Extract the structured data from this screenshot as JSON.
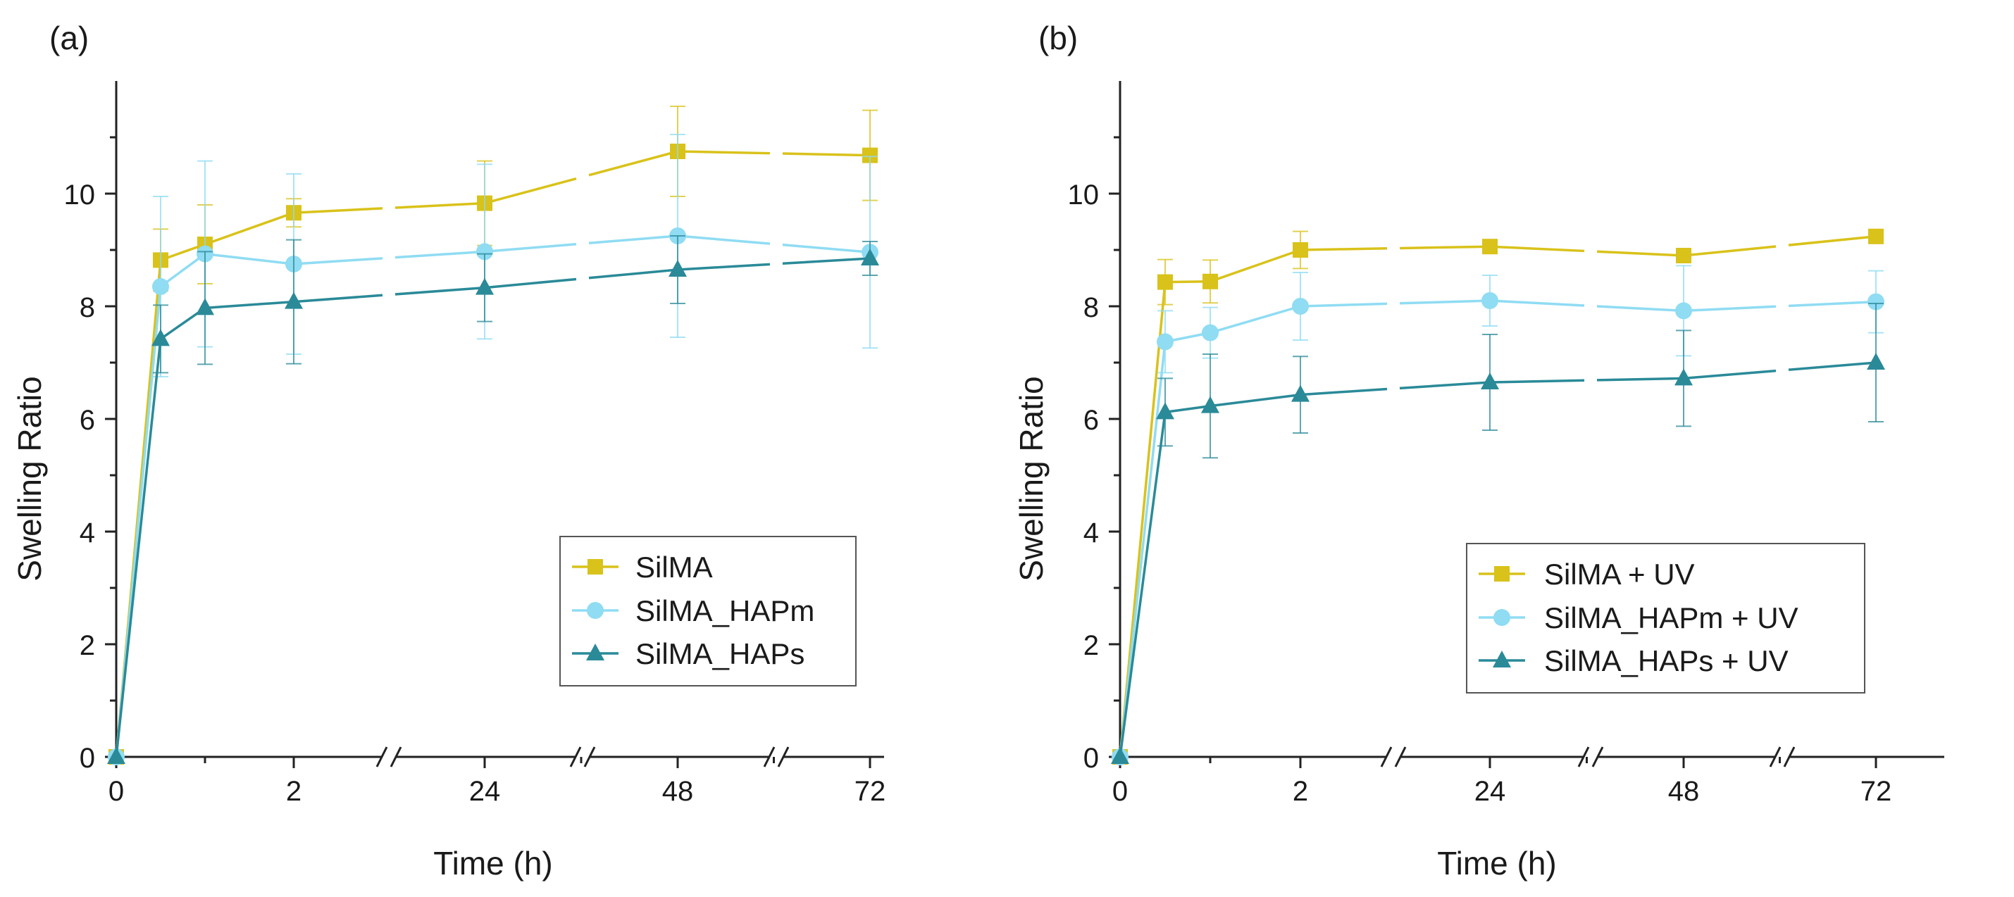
{
  "chart_data": [
    {
      "type": "line",
      "panel_label": "(a)",
      "xlabel": "Time (h)",
      "ylabel": "Swelling Ratio",
      "ylim": [
        0,
        12
      ],
      "x_tick_labels": [
        "0",
        "2",
        "24",
        "48",
        "72"
      ],
      "y_tick_labels": [
        "0",
        "2",
        "4",
        "6",
        "8",
        "10"
      ],
      "x_axis_breaks": [
        "between 2 and 24",
        "between 24 and 48",
        "between 48 and 72"
      ],
      "x": [
        0,
        0.5,
        1,
        2,
        24,
        48,
        72
      ],
      "legend_position": "lower-right",
      "series": [
        {
          "name": "SilMA",
          "marker": "square",
          "color": "#d9c21a",
          "values": [
            0,
            8.82,
            9.1,
            9.66,
            9.83,
            10.75,
            10.68
          ],
          "errors": [
            0,
            0.55,
            0.7,
            0.25,
            0.75,
            0.8,
            0.8
          ]
        },
        {
          "name": "SilMA_HAPm",
          "marker": "circle",
          "color": "#8fdcf3",
          "values": [
            0,
            8.35,
            8.93,
            8.75,
            8.97,
            9.25,
            8.96
          ],
          "errors": [
            0,
            1.6,
            1.65,
            1.6,
            1.55,
            1.8,
            1.7
          ]
        },
        {
          "name": "SilMA_HAPs",
          "marker": "triangle",
          "color": "#2a8a98",
          "values": [
            0,
            7.42,
            7.97,
            8.08,
            8.33,
            8.65,
            8.85
          ],
          "errors": [
            0,
            0.6,
            1.0,
            1.1,
            0.6,
            0.6,
            0.3
          ]
        }
      ]
    },
    {
      "type": "line",
      "panel_label": "(b)",
      "xlabel": "Time (h)",
      "ylabel": "Swelling Ratio",
      "ylim": [
        0,
        12
      ],
      "x_tick_labels": [
        "0",
        "2",
        "24",
        "48",
        "72"
      ],
      "y_tick_labels": [
        "0",
        "2",
        "4",
        "6",
        "8",
        "10"
      ],
      "x_axis_breaks": [
        "between 2 and 24",
        "between 24 and 48",
        "between 48 and 72"
      ],
      "x": [
        0,
        0.5,
        1,
        2,
        24,
        48,
        72
      ],
      "legend_position": "lower-right",
      "series": [
        {
          "name": "SilMA + UV",
          "marker": "square",
          "color": "#d9c21a",
          "values": [
            0,
            8.43,
            8.44,
            9.0,
            9.06,
            8.9,
            9.24
          ],
          "errors": [
            0,
            0.4,
            0.38,
            0.33,
            0.1,
            0.12,
            0.1
          ]
        },
        {
          "name": "SilMA_HAPm + UV",
          "marker": "circle",
          "color": "#8fdcf3",
          "values": [
            0,
            7.37,
            7.53,
            8.0,
            8.1,
            7.92,
            8.08
          ],
          "errors": [
            0,
            0.55,
            0.45,
            0.6,
            0.45,
            0.8,
            0.55
          ]
        },
        {
          "name": "SilMA_HAPs + UV",
          "marker": "triangle",
          "color": "#2a8a98",
          "values": [
            0,
            6.12,
            6.23,
            6.43,
            6.65,
            6.72,
            7.0
          ],
          "errors": [
            0,
            0.6,
            0.92,
            0.68,
            0.85,
            0.85,
            1.05
          ]
        }
      ]
    }
  ]
}
